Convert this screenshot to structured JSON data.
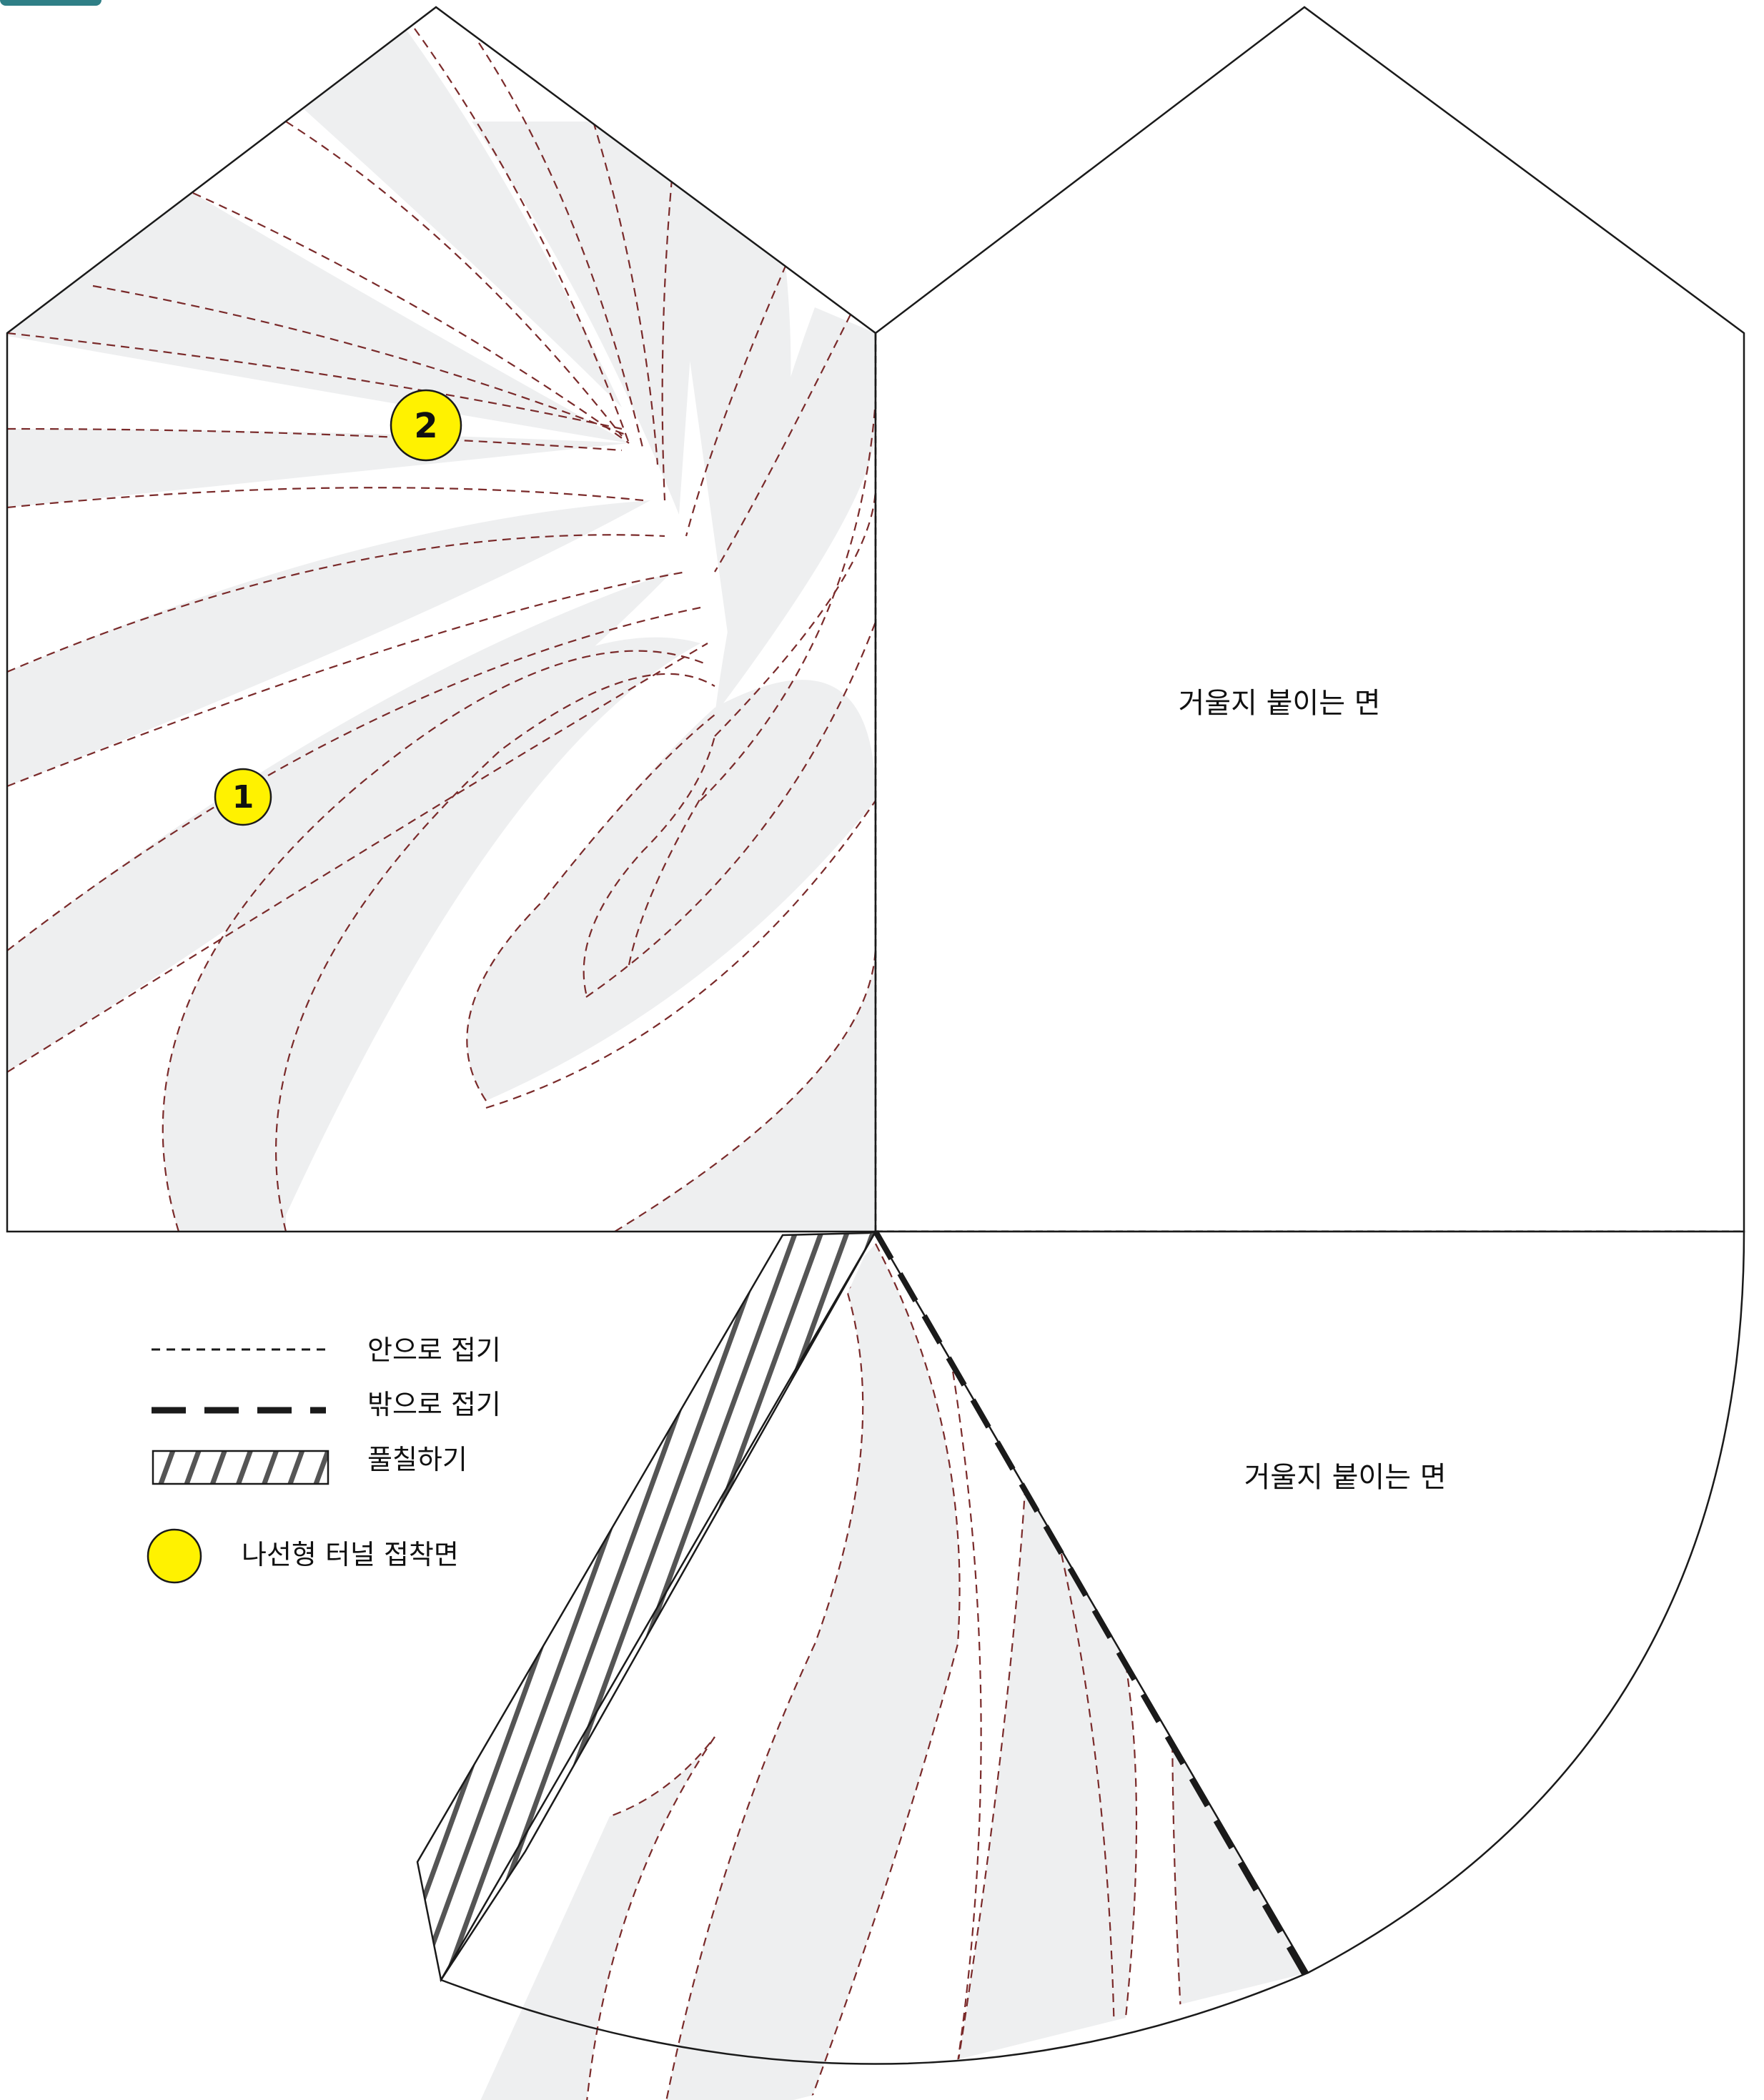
{
  "panels": {
    "mirror_top_label": "거울지 붙이는 면",
    "mirror_bottom_label": "거울지 붙이는 면"
  },
  "markers": [
    {
      "number": "1"
    },
    {
      "number": "2"
    }
  ],
  "legend": {
    "fold_in": "안으로 접기",
    "fold_out": "밖으로 접기",
    "fill": "풀칠하기",
    "glue_surface": "나선형 터널 접착면"
  },
  "colors": {
    "stripe_fill": "#eeeff0",
    "dash_line": "#7a2a2a",
    "outline": "#1a1a1a",
    "marker_yellow": "#fff200",
    "accent_tab": "#2f7f86"
  }
}
